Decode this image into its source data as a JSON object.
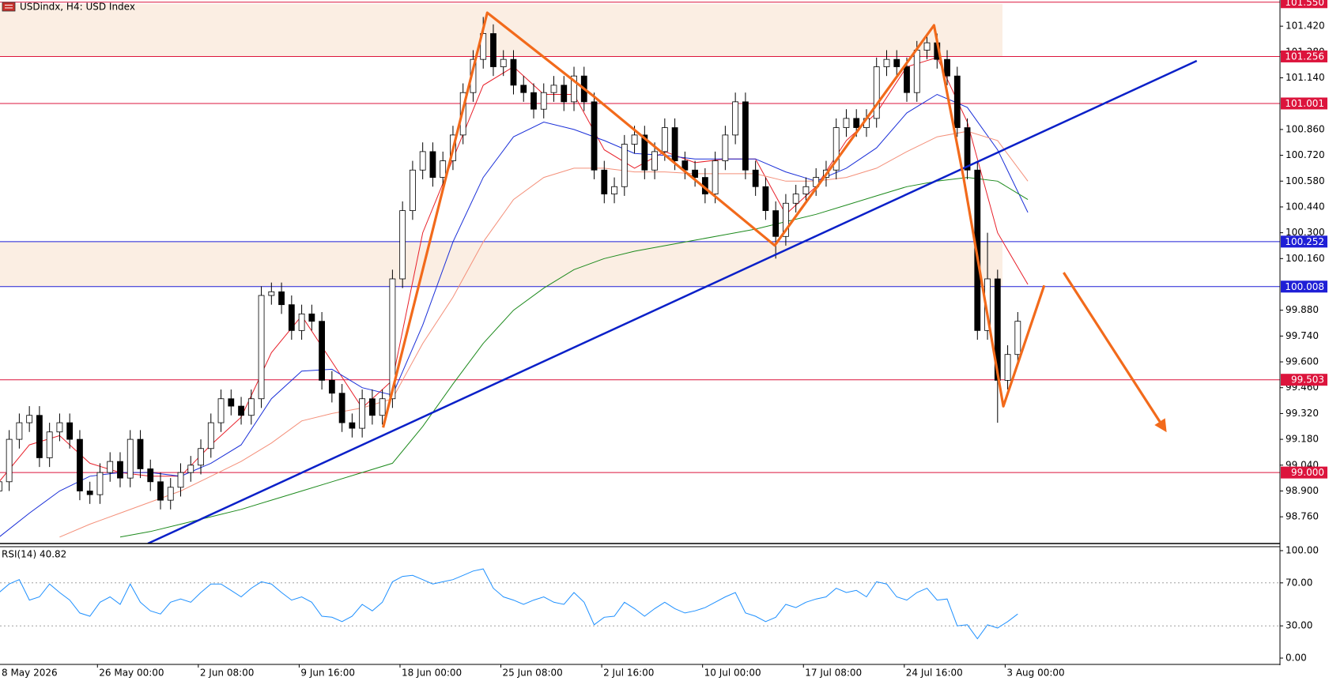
{
  "chart_data": [
    {
      "type": "candlestick",
      "title": "USDindx, H4:  USD Index",
      "x": [
        1,
        5,
        9,
        13,
        17,
        21,
        25,
        29,
        33,
        37,
        41,
        45,
        49,
        53,
        57,
        61,
        65,
        69,
        73,
        77,
        81,
        85,
        89,
        93,
        97,
        101,
        105,
        109,
        113,
        117,
        121,
        125,
        129,
        133,
        137,
        141,
        145,
        149,
        153,
        157,
        161,
        165,
        169,
        173,
        177,
        181,
        185,
        189,
        193,
        197,
        201,
        205,
        209,
        213,
        217,
        221,
        225,
        229,
        233,
        237,
        241,
        245,
        249,
        253,
        257,
        261,
        265,
        269,
        273,
        277,
        281,
        285,
        289,
        293,
        297,
        301,
        305,
        309,
        313,
        317,
        321,
        325,
        329,
        333,
        337,
        341,
        345,
        349,
        353,
        357,
        361,
        365,
        369,
        373,
        377,
        381,
        385,
        389,
        393,
        397,
        401,
        405
      ],
      "open": [
        98.9,
        98.95,
        99.18,
        99.27,
        99.31,
        99.08,
        99.22,
        99.27,
        99.18,
        98.9,
        98.88,
        99.0,
        99.06,
        98.97,
        99.18,
        99.02,
        98.95,
        98.85,
        98.92,
        99.0,
        99.04,
        99.13,
        99.27,
        99.4,
        99.36,
        99.31,
        99.4,
        99.96,
        99.98,
        99.91,
        99.77,
        99.86,
        99.82,
        99.5,
        99.43,
        99.27,
        99.24,
        99.4,
        99.31,
        99.4,
        100.05,
        100.42,
        100.64,
        100.74,
        100.6,
        100.69,
        100.83,
        101.06,
        101.24,
        101.38,
        101.2,
        101.24,
        101.1,
        101.06,
        100.97,
        101.06,
        101.1,
        101.01,
        101.15,
        101.01,
        100.64,
        100.51,
        100.55,
        100.78,
        100.83,
        100.64,
        100.74,
        100.87,
        100.69,
        100.64,
        100.6,
        100.51,
        100.69,
        100.83,
        101.01,
        100.64,
        100.55,
        100.42,
        100.28,
        100.46,
        100.51,
        100.55,
        100.6,
        100.64,
        100.87,
        100.92,
        100.87,
        100.92,
        101.2,
        101.24,
        101.2,
        101.06,
        101.29,
        101.33,
        101.24,
        101.15,
        100.87,
        100.64,
        99.77,
        100.05,
        99.5,
        99.64
      ],
      "high": [
        99.0,
        99.23,
        99.32,
        99.36,
        99.36,
        99.27,
        99.32,
        99.32,
        99.23,
        98.95,
        99.05,
        99.11,
        99.11,
        99.23,
        99.23,
        99.07,
        99.0,
        98.97,
        99.05,
        99.09,
        99.18,
        99.32,
        99.45,
        99.45,
        99.41,
        99.45,
        100.01,
        100.03,
        100.03,
        99.96,
        99.91,
        99.91,
        99.87,
        99.55,
        99.48,
        99.32,
        99.45,
        99.45,
        99.45,
        100.1,
        100.47,
        100.69,
        100.79,
        100.79,
        100.74,
        100.88,
        101.11,
        101.29,
        101.47,
        101.43,
        101.29,
        101.29,
        101.15,
        101.11,
        101.11,
        101.15,
        101.15,
        101.2,
        101.2,
        101.06,
        100.69,
        100.6,
        100.83,
        100.88,
        100.88,
        100.79,
        100.92,
        100.92,
        100.74,
        100.69,
        100.65,
        100.74,
        100.88,
        101.06,
        101.06,
        100.69,
        100.6,
        100.47,
        100.51,
        100.56,
        100.6,
        100.65,
        100.69,
        100.92,
        100.97,
        100.97,
        100.97,
        101.25,
        101.29,
        101.29,
        101.25,
        101.34,
        101.38,
        101.38,
        101.29,
        101.2,
        100.92,
        100.69,
        100.3,
        100.1,
        99.69,
        99.87
      ],
      "low": [
        98.85,
        98.9,
        99.13,
        99.22,
        99.03,
        99.03,
        99.17,
        99.13,
        98.85,
        98.83,
        98.83,
        98.95,
        98.92,
        98.92,
        98.97,
        98.9,
        98.8,
        98.8,
        98.87,
        98.95,
        98.99,
        99.08,
        99.22,
        99.31,
        99.26,
        99.26,
        99.35,
        99.91,
        99.86,
        99.72,
        99.72,
        99.77,
        99.45,
        99.38,
        99.22,
        99.19,
        99.19,
        99.26,
        99.26,
        99.35,
        100.0,
        100.37,
        100.59,
        100.55,
        100.55,
        100.64,
        100.78,
        101.01,
        101.19,
        101.15,
        101.15,
        101.05,
        101.01,
        100.92,
        100.92,
        101.01,
        100.96,
        100.96,
        100.96,
        100.59,
        100.46,
        100.46,
        100.5,
        100.73,
        100.59,
        100.59,
        100.69,
        100.64,
        100.59,
        100.55,
        100.46,
        100.46,
        100.64,
        100.78,
        100.59,
        100.5,
        100.37,
        100.16,
        100.23,
        100.41,
        100.46,
        100.5,
        100.55,
        100.59,
        100.82,
        100.82,
        100.82,
        100.87,
        101.15,
        101.15,
        101.01,
        101.01,
        101.24,
        101.19,
        101.1,
        100.82,
        100.59,
        99.72,
        99.72,
        99.27,
        99.45,
        99.59
      ],
      "close": [
        98.95,
        99.18,
        99.27,
        99.31,
        99.08,
        99.22,
        99.27,
        99.18,
        98.9,
        98.88,
        99.0,
        99.06,
        98.97,
        99.18,
        99.02,
        98.95,
        98.85,
        98.92,
        99.0,
        99.04,
        99.13,
        99.27,
        99.4,
        99.36,
        99.31,
        99.4,
        99.96,
        99.98,
        99.91,
        99.77,
        99.86,
        99.82,
        99.5,
        99.43,
        99.27,
        99.24,
        99.4,
        99.31,
        99.4,
        100.05,
        100.42,
        100.64,
        100.74,
        100.6,
        100.69,
        100.83,
        101.06,
        101.24,
        101.38,
        101.2,
        101.24,
        101.1,
        101.06,
        100.97,
        101.06,
        101.1,
        101.01,
        101.15,
        101.01,
        100.64,
        100.51,
        100.55,
        100.78,
        100.83,
        100.64,
        100.74,
        100.87,
        100.69,
        100.64,
        100.6,
        100.51,
        100.69,
        100.83,
        101.01,
        100.64,
        100.55,
        100.42,
        100.28,
        100.46,
        100.51,
        100.55,
        100.6,
        100.64,
        100.87,
        100.92,
        100.87,
        100.92,
        101.2,
        101.24,
        101.2,
        101.06,
        101.29,
        101.33,
        101.24,
        101.15,
        100.87,
        100.64,
        99.77,
        100.05,
        99.5,
        99.64,
        99.82
      ],
      "up_color": "#ffffff",
      "down_color": "#000000",
      "xlim": [
        1.35,
        509
      ],
      "ylim": [
        98.615,
        101.562
      ],
      "xticks": [
        {
          "value": 0,
          "label": "8 May 2026"
        },
        {
          "value": 40,
          "label": "26 May 00:00"
        },
        {
          "value": 80,
          "label": "2 Jun 08:00"
        },
        {
          "value": 120,
          "label": "9 Jun 16:00"
        },
        {
          "value": 160,
          "label": "18 Jun 00:00"
        },
        {
          "value": 200,
          "label": "25 Jun 08:00"
        },
        {
          "value": 240,
          "label": "2 Jul 16:00"
        },
        {
          "value": 280,
          "label": "10 Jul 00:00"
        },
        {
          "value": 320,
          "label": "17 Jul 08:00"
        },
        {
          "value": 360,
          "label": "24 Jul 16:00"
        },
        {
          "value": 400,
          "label": "3 Aug 00:00"
        }
      ],
      "yticks": [
        {
          "value": 101.42,
          "label": "101.420"
        },
        {
          "value": 101.28,
          "label": "101.280"
        },
        {
          "value": 101.14,
          "label": "101.140"
        },
        {
          "value": 100.86,
          "label": "100.860"
        },
        {
          "value": 100.72,
          "label": "100.720"
        },
        {
          "value": 100.58,
          "label": "100.580"
        },
        {
          "value": 100.44,
          "label": "100.440"
        },
        {
          "value": 100.3,
          "label": "100.300"
        },
        {
          "value": 100.16,
          "label": "100.160"
        },
        {
          "value": 99.88,
          "label": "99.880"
        },
        {
          "value": 99.74,
          "label": "99.740"
        },
        {
          "value": 99.6,
          "label": "99.600"
        },
        {
          "value": 99.46,
          "label": "99.460"
        },
        {
          "value": 99.32,
          "label": "99.320"
        },
        {
          "value": 99.18,
          "label": "99.180"
        },
        {
          "value": 99.04,
          "label": "99.040"
        },
        {
          "value": 98.9,
          "label": "98.900"
        },
        {
          "value": 98.76,
          "label": "98.760"
        }
      ],
      "ma_x": [
        1,
        13,
        25,
        37,
        49,
        61,
        73,
        85,
        97,
        109,
        121,
        133,
        145,
        157,
        169,
        181,
        193,
        205,
        217,
        229,
        241,
        253,
        265,
        277,
        289,
        301,
        313,
        325,
        337,
        349,
        361,
        373,
        385,
        397,
        409
      ],
      "moving_averages": [
        {
          "color": "#e8202a",
          "values": [
            98.95,
            99.15,
            99.2,
            99.05,
            99.0,
            98.98,
            98.98,
            99.15,
            99.3,
            99.65,
            99.85,
            99.6,
            99.35,
            99.5,
            100.3,
            100.7,
            101.1,
            101.2,
            101.05,
            101.05,
            100.75,
            100.65,
            100.74,
            100.68,
            100.7,
            100.7,
            100.4,
            100.55,
            100.8,
            100.95,
            101.2,
            101.25,
            100.9,
            100.3,
            100.02
          ]
        },
        {
          "color": "#1a2fd8",
          "values": [
            98.65,
            98.78,
            98.9,
            98.98,
            99.0,
            99.0,
            98.98,
            99.05,
            99.15,
            99.4,
            99.55,
            99.56,
            99.46,
            99.42,
            99.8,
            100.25,
            100.6,
            100.82,
            100.9,
            100.86,
            100.8,
            100.73,
            100.72,
            100.7,
            100.7,
            100.7,
            100.63,
            100.58,
            100.65,
            100.76,
            100.95,
            101.05,
            100.98,
            100.75,
            100.41
          ]
        },
        {
          "color": "#f4907a",
          "values": [
            null,
            null,
            98.65,
            98.72,
            98.78,
            98.84,
            98.9,
            98.98,
            99.06,
            99.16,
            99.28,
            99.32,
            99.35,
            99.4,
            99.7,
            99.95,
            100.25,
            100.48,
            100.6,
            100.65,
            100.65,
            100.63,
            100.63,
            100.62,
            100.62,
            100.62,
            100.58,
            100.58,
            100.6,
            100.65,
            100.74,
            100.82,
            100.85,
            100.8,
            100.58
          ]
        },
        {
          "color": "#1d8a1d",
          "values": [
            null,
            null,
            null,
            null,
            98.65,
            98.68,
            98.72,
            98.76,
            98.8,
            98.85,
            98.9,
            98.95,
            99.0,
            99.05,
            99.25,
            99.48,
            99.7,
            99.88,
            100.0,
            100.1,
            100.16,
            100.2,
            100.23,
            100.26,
            100.29,
            100.32,
            100.36,
            100.4,
            100.45,
            100.5,
            100.55,
            100.58,
            100.6,
            100.58,
            100.48
          ]
        }
      ],
      "zones": [
        {
          "from": 101.256,
          "to": 101.54
        },
        {
          "from": 100.008,
          "to": 100.252
        }
      ],
      "zone_color": "#fbeee3",
      "levels": [
        {
          "value": 101.55,
          "label": "101.550",
          "color": "#dc143c"
        },
        {
          "value": 101.256,
          "label": "101.256",
          "color": "#dc143c"
        },
        {
          "value": 101.001,
          "label": "101.001",
          "color": "#dc143c"
        },
        {
          "value": 100.252,
          "label": "100.252",
          "color": "#1f1fd6"
        },
        {
          "value": 100.008,
          "label": "100.008",
          "color": "#1f1fd6"
        },
        {
          "value": 99.503,
          "label": "99.503",
          "color": "#dc143c"
        },
        {
          "value": 99.0,
          "label": "99.000",
          "color": "#dc143c"
        }
      ],
      "trendline": {
        "x": [
          60,
          476
        ],
        "y": [
          98.615,
          101.232
        ],
        "color": "#0a20c8"
      },
      "pattern": {
        "x": [
          153.3,
          194.6,
          236.6,
          308.6,
          371.8,
          383.5,
          399.3,
          415.5
        ],
        "y": [
          99.244,
          101.493,
          101.042,
          100.231,
          101.425,
          100.598,
          99.359,
          100.015
        ],
        "color": "#f26a1b"
      },
      "arrow": {
        "x": [
          423.2,
          463.5
        ],
        "y": [
          100.084,
          99.23
        ],
        "color": "#f26a1b"
      }
    },
    {
      "type": "line",
      "title": "RSI(14) 40.82",
      "ylim": [
        0,
        100
      ],
      "yticks": [
        {
          "value": 100,
          "label": "100.00"
        },
        {
          "value": 70,
          "label": "70.00"
        },
        {
          "value": 30,
          "label": "30.00"
        },
        {
          "value": 0,
          "label": "0.00"
        }
      ],
      "grid": true,
      "series": [
        {
          "color": "#1e90ff",
          "values": [
            61,
            69,
            73,
            54,
            57,
            69,
            61,
            54,
            42,
            39,
            52,
            57,
            50,
            69,
            52,
            44,
            41,
            52,
            55,
            52,
            61,
            69,
            69,
            63,
            57,
            65,
            71,
            69,
            61,
            54,
            57,
            52,
            39,
            38,
            34,
            39,
            50,
            44,
            52,
            71,
            76,
            77,
            73,
            69,
            71,
            73,
            77,
            81,
            83,
            65,
            57,
            54,
            50,
            54,
            57,
            52,
            50,
            61,
            52,
            31,
            38,
            39,
            52,
            46,
            39,
            46,
            52,
            46,
            42,
            44,
            47,
            52,
            57,
            61,
            42,
            39,
            34,
            38,
            50,
            47,
            52,
            55,
            57,
            65,
            61,
            63,
            57,
            71,
            69,
            57,
            54,
            61,
            65,
            54,
            55,
            30,
            31,
            18,
            31,
            28,
            34,
            41
          ]
        }
      ]
    }
  ]
}
